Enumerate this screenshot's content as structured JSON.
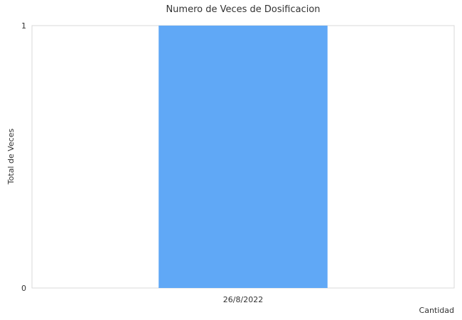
{
  "chart_data": {
    "type": "bar",
    "title": "Numero de Veces de Dosificacion",
    "xlabel": "Cantidad",
    "ylabel": "Total de Veces",
    "categories": [
      "26/8/2022"
    ],
    "series": [
      {
        "values": [
          1
        ]
      }
    ],
    "ylim": [
      0,
      1
    ],
    "yticks": [
      0,
      1
    ],
    "grid": false,
    "legend": "none",
    "bar_color": "#60a8f6"
  }
}
